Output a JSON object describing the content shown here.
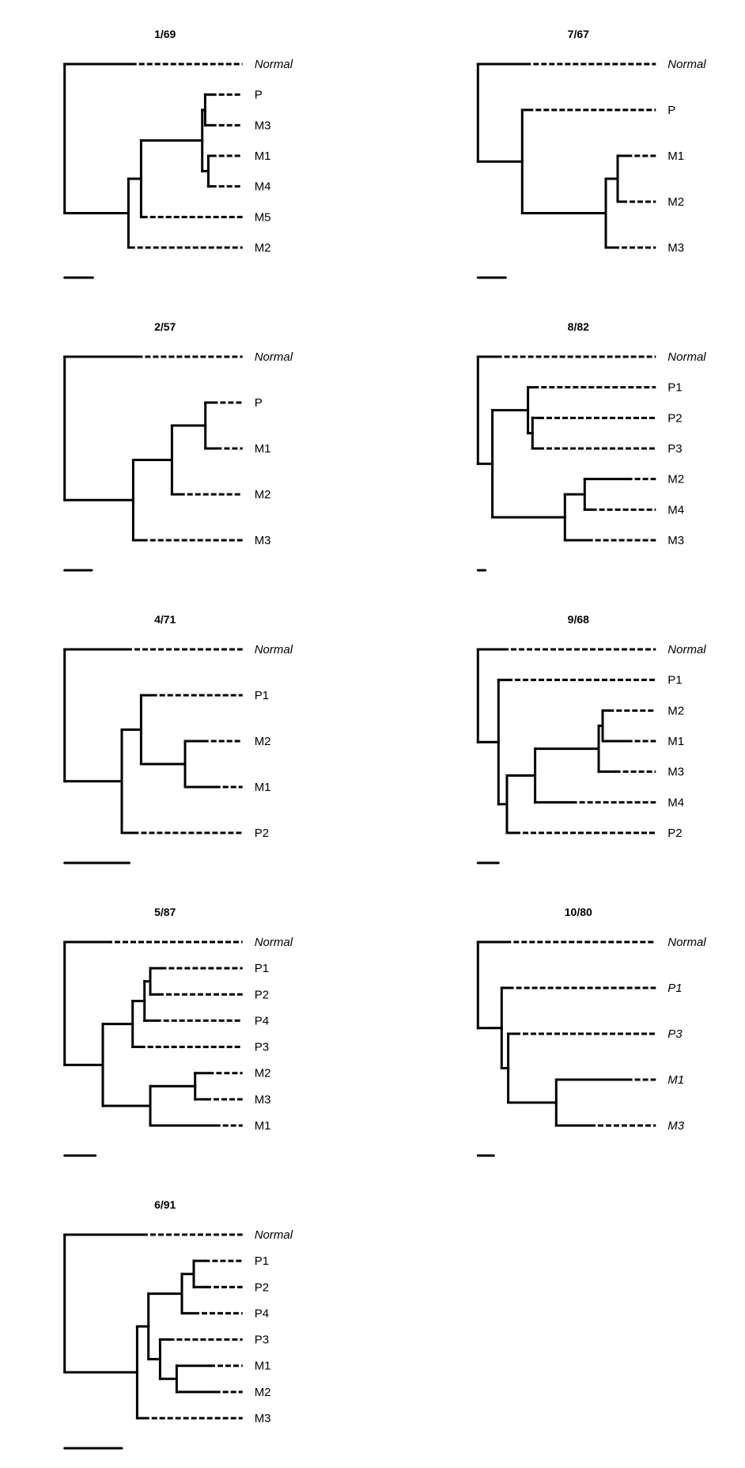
{
  "figure": {
    "branch_line_color": "#000000",
    "label_extension_style": "dashed",
    "panels": [
      {
        "title": "1/69",
        "italic_labels_all": false,
        "scale_bar_length": 35.7,
        "tree": {
          "depth": 0,
          "children": [
            {
              "label": "Normal",
              "italic": true,
              "depth": 84
            },
            {
              "depth": 80.7,
              "children": [
                {
                  "depth": 96.7,
                  "children": [
                    {
                      "depth": 174,
                      "children": [
                        {
                          "depth": 177.7,
                          "children": [
                            {
                              "label": "P",
                              "depth": 185
                            },
                            {
                              "label": "M3",
                              "depth": 185
                            }
                          ]
                        },
                        {
                          "depth": 181.7,
                          "children": [
                            {
                              "label": "M1",
                              "depth": 185
                            },
                            {
                              "label": "M4",
                              "depth": 185
                            }
                          ]
                        }
                      ]
                    },
                    {
                      "label": "M5",
                      "depth": 98
                    }
                  ]
                },
                {
                  "label": "M2",
                  "depth": 82
                }
              ]
            }
          ]
        }
      },
      {
        "title": "7/67",
        "italic_labels_all": false,
        "scale_bar_length": 35,
        "tree": {
          "depth": 0,
          "children": [
            {
              "label": "Normal",
              "italic": true,
              "depth": 60
            },
            {
              "depth": 56,
              "children": [
                {
                  "label": "P",
                  "depth": 63
                },
                {
                  "depth": 161.7,
                  "children": [
                    {
                      "depth": 176.7,
                      "children": [
                        {
                          "label": "M1",
                          "depth": 188
                        },
                        {
                          "label": "M2",
                          "depth": 181.7
                        }
                      ]
                    },
                    {
                      "label": "M3",
                      "depth": 171.7
                    }
                  ]
                }
              ]
            }
          ]
        }
      },
      {
        "title": "2/57",
        "italic_labels_all": false,
        "scale_bar_length": 34.3,
        "tree": {
          "depth": 0,
          "children": [
            {
              "label": "Normal",
              "italic": true,
              "depth": 91.7
            },
            {
              "depth": 86.7,
              "children": [
                {
                  "depth": 135.7,
                  "children": [
                    {
                      "depth": 178,
                      "children": [
                        {
                          "label": "P",
                          "depth": 186.7
                        },
                        {
                          "label": "M1",
                          "depth": 191.7
                        }
                      ]
                    },
                    {
                      "label": "M2",
                      "depth": 145
                    }
                  ]
                },
                {
                  "label": "M3",
                  "depth": 98
                }
              ]
            }
          ]
        }
      },
      {
        "title": "8/82",
        "italic_labels_all": false,
        "scale_bar_length": 9.3,
        "tree": {
          "depth": 0,
          "children": [
            {
              "label": "Normal",
              "italic": true,
              "depth": 23.3
            },
            {
              "depth": 18.3,
              "children": [
                {
                  "depth": 63.3,
                  "children": [
                    {
                      "label": "P1",
                      "depth": 70
                    },
                    {
                      "depth": 69,
                      "children": [
                        {
                          "label": "P2",
                          "depth": 76.7
                        },
                        {
                          "label": "P3",
                          "depth": 76.7
                        }
                      ]
                    }
                  ]
                },
                {
                  "depth": 110,
                  "children": [
                    {
                      "depth": 135,
                      "children": [
                        {
                          "label": "M2",
                          "depth": 188.3
                        },
                        {
                          "label": "M4",
                          "depth": 143.3
                        }
                      ]
                    },
                    {
                      "label": "M3",
                      "depth": 138.3
                    }
                  ]
                }
              ]
            }
          ]
        }
      },
      {
        "title": "4/71",
        "italic_labels_all": false,
        "scale_bar_length": 81.7,
        "tree": {
          "depth": 0,
          "children": [
            {
              "label": "Normal",
              "italic": true,
              "depth": 78.3
            },
            {
              "depth": 72.3,
              "children": [
                {
                  "depth": 96.7,
                  "children": [
                    {
                      "label": "P1",
                      "depth": 110
                    },
                    {
                      "depth": 152.3,
                      "children": [
                        {
                          "label": "M2",
                          "depth": 175
                        },
                        {
                          "label": "M1",
                          "depth": 190
                        }
                      ]
                    }
                  ]
                },
                {
                  "label": "P2",
                  "depth": 86.7
                }
              ]
            }
          ]
        }
      },
      {
        "title": "9/68",
        "italic_labels_all": false,
        "scale_bar_length": 26,
        "tree": {
          "depth": 0,
          "children": [
            {
              "label": "Normal",
              "italic": true,
              "depth": 31.7
            },
            {
              "depth": 26,
              "children": [
                {
                  "label": "P1",
                  "depth": 36.7
                },
                {
                  "depth": 36.7,
                  "children": [
                    {
                      "depth": 72.3,
                      "children": [
                        {
                          "depth": 152.7,
                          "children": [
                            {
                              "depth": 157.7,
                              "children": [
                                {
                                  "label": "M2",
                                  "depth": 165
                                },
                                {
                                  "label": "M1",
                                  "depth": 188.3
                                }
                              ]
                            },
                            {
                              "label": "M3",
                              "depth": 173.3
                            }
                          ]
                        },
                        {
                          "label": "M4",
                          "depth": 118.3
                        }
                      ]
                    },
                    {
                      "label": "P2",
                      "depth": 46.7
                    }
                  ]
                }
              ]
            }
          ]
        }
      },
      {
        "title": "5/87",
        "italic_labels_all": false,
        "scale_bar_length": 39,
        "tree": {
          "depth": 0,
          "children": [
            {
              "label": "Normal",
              "italic": true,
              "depth": 53.3
            },
            {
              "depth": 48.3,
              "children": [
                {
                  "depth": 86,
                  "children": [
                    {
                      "depth": 101,
                      "children": [
                        {
                          "depth": 108.3,
                          "children": [
                            {
                              "label": "P1",
                              "depth": 121.7
                            },
                            {
                              "label": "P2",
                              "depth": 118.3
                            }
                          ]
                        },
                        {
                          "label": "P4",
                          "depth": 115
                        }
                      ]
                    },
                    {
                      "label": "P3",
                      "depth": 95
                    }
                  ]
                },
                {
                  "depth": 108.3,
                  "children": [
                    {
                      "depth": 165,
                      "children": [
                        {
                          "label": "M2",
                          "depth": 181.7
                        },
                        {
                          "label": "M3",
                          "depth": 178.3
                        }
                      ]
                    },
                    {
                      "label": "M1",
                      "depth": 190
                    }
                  ]
                }
              ]
            }
          ]
        }
      },
      {
        "title": "10/80",
        "italic_labels_all": true,
        "scale_bar_length": 20,
        "tree": {
          "depth": 0,
          "children": [
            {
              "label": "Normal",
              "italic": true,
              "depth": 35
            },
            {
              "depth": 30,
              "children": [
                {
                  "label": "P1",
                  "depth": 38.3
                },
                {
                  "depth": 38.3,
                  "children": [
                    {
                      "label": "P3",
                      "depth": 46.7
                    },
                    {
                      "depth": 99,
                      "children": [
                        {
                          "label": "M1",
                          "depth": 188.3
                        },
                        {
                          "label": "M3",
                          "depth": 141.7
                        }
                      ]
                    }
                  ]
                }
              ]
            }
          ]
        }
      },
      {
        "title": "6/91",
        "italic_labels_all": false,
        "scale_bar_length": 72.3,
        "tree": {
          "depth": 0,
          "children": [
            {
              "label": "Normal",
              "italic": true,
              "depth": 98.3
            },
            {
              "depth": 91.7,
              "children": [
                {
                  "depth": 106,
                  "children": [
                    {
                      "depth": 148.3,
                      "children": [
                        {
                          "depth": 163.3,
                          "children": [
                            {
                              "label": "P1",
                              "depth": 176.7
                            },
                            {
                              "label": "P2",
                              "depth": 178.3
                            }
                          ]
                        },
                        {
                          "label": "P4",
                          "depth": 163.3
                        }
                      ]
                    },
                    {
                      "depth": 120.7,
                      "children": [
                        {
                          "label": "P3",
                          "depth": 131.7
                        },
                        {
                          "depth": 141.7,
                          "children": [
                            {
                              "label": "M1",
                              "depth": 183.3
                            },
                            {
                              "label": "M2",
                              "depth": 190
                            }
                          ]
                        }
                      ]
                    }
                  ]
                },
                {
                  "label": "M3",
                  "depth": 100
                }
              ]
            }
          ]
        }
      }
    ]
  }
}
